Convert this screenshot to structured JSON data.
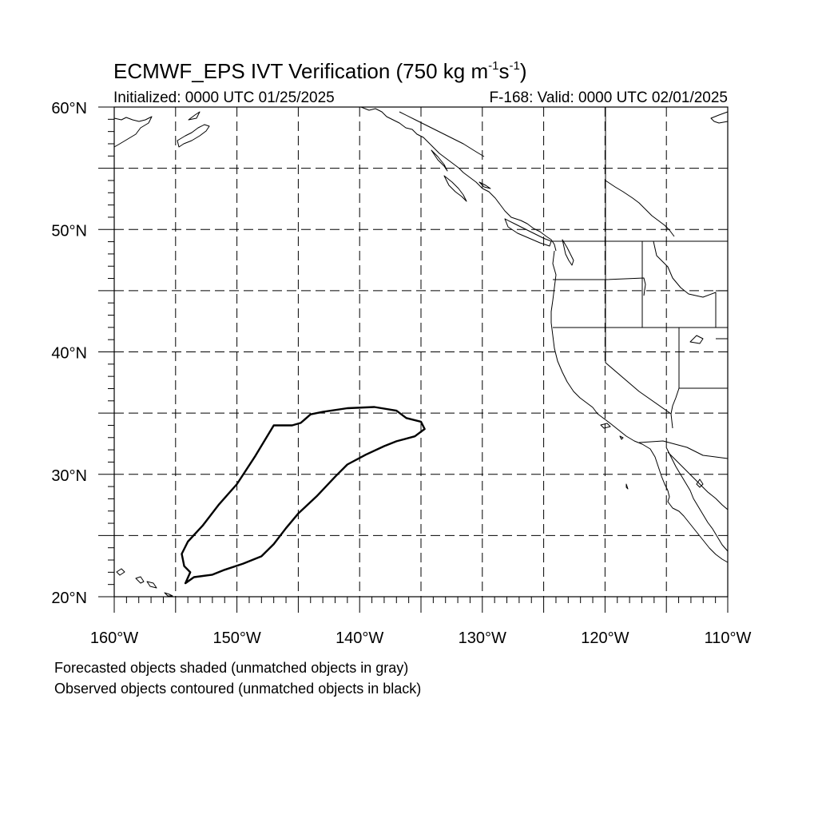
{
  "header": {
    "title_prefix": "ECMWF_EPS IVT Verification (750 kg m",
    "title_exp1": "-1",
    "title_mid": "s",
    "title_exp2": "-1",
    "title_suffix": ")",
    "initialized": "Initialized: 0000 UTC 01/25/2025",
    "valid": "F-168: Valid: 0000 UTC 02/01/2025"
  },
  "map": {
    "lon_range": [
      -160,
      -110
    ],
    "lat_range": [
      20,
      60
    ],
    "lat_labels": [
      {
        "lat": 60,
        "text": "60°N"
      },
      {
        "lat": 50,
        "text": "50°N"
      },
      {
        "lat": 40,
        "text": "40°N"
      },
      {
        "lat": 30,
        "text": "30°N"
      },
      {
        "lat": 20,
        "text": "20°N"
      }
    ],
    "lon_labels": [
      {
        "lon": -160,
        "text": "160°W"
      },
      {
        "lon": -150,
        "text": "150°W"
      },
      {
        "lon": -140,
        "text": "140°W"
      },
      {
        "lon": -130,
        "text": "130°W"
      },
      {
        "lon": -120,
        "text": "120°W"
      },
      {
        "lon": -110,
        "text": "110°W"
      }
    ],
    "grid_lats": [
      25,
      30,
      35,
      40,
      45,
      50,
      55
    ],
    "grid_lons": [
      -155,
      -150,
      -145,
      -140,
      -135,
      -130,
      -125,
      -120,
      -115
    ],
    "observed_object": [
      [
        -154.2,
        21.1
      ],
      [
        -153.5,
        21.6
      ],
      [
        -152.0,
        21.8
      ],
      [
        -151.0,
        22.2
      ],
      [
        -149.5,
        22.7
      ],
      [
        -148.0,
        23.3
      ],
      [
        -147.0,
        24.3
      ],
      [
        -146.0,
        25.6
      ],
      [
        -145.0,
        26.8
      ],
      [
        -143.5,
        28.2
      ],
      [
        -142.0,
        29.8
      ],
      [
        -141.0,
        30.8
      ],
      [
        -139.5,
        31.6
      ],
      [
        -138.0,
        32.3
      ],
      [
        -137.0,
        32.7
      ],
      [
        -135.5,
        33.1
      ],
      [
        -134.7,
        33.7
      ],
      [
        -135.0,
        34.3
      ],
      [
        -136.2,
        34.6
      ],
      [
        -137.0,
        35.2
      ],
      [
        -138.8,
        35.5
      ],
      [
        -141.0,
        35.4
      ],
      [
        -143.0,
        35.1
      ],
      [
        -144.0,
        34.9
      ],
      [
        -144.8,
        34.2
      ],
      [
        -145.5,
        34.0
      ],
      [
        -147.0,
        34.0
      ],
      [
        -148.5,
        31.5
      ],
      [
        -150.0,
        29.2
      ],
      [
        -151.5,
        27.5
      ],
      [
        -152.8,
        25.8
      ],
      [
        -154.0,
        24.5
      ],
      [
        -154.5,
        23.5
      ],
      [
        -154.3,
        22.5
      ],
      [
        -153.8,
        22.0
      ],
      [
        -154.2,
        21.1
      ]
    ],
    "notes": [
      "Forecasted objects shaded (unmatched objects in gray)",
      "Observed objects contoured (unmatched objects in black)"
    ]
  }
}
